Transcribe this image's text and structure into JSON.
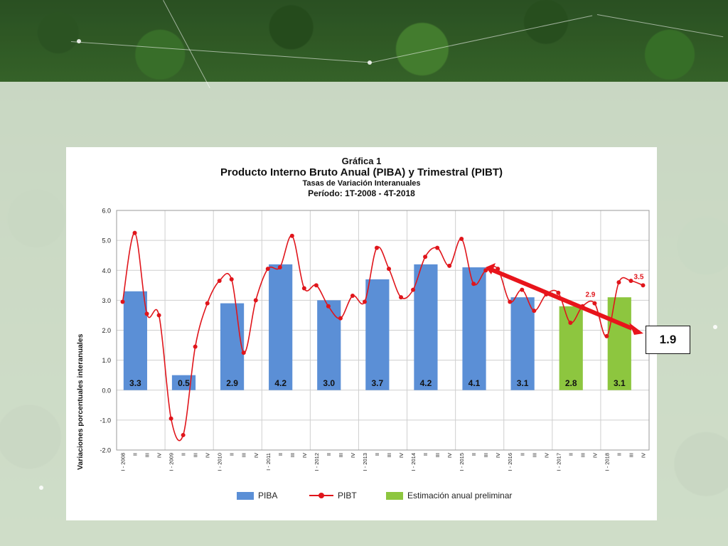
{
  "chart_data": {
    "type": "bar",
    "title": "Gráfica 1",
    "subtitle": "Producto Interno Bruto Anual (PIBA) y Trimestral (PIBT)",
    "subtitle2": "Tasas de Variación Interanuales",
    "period": "Período: 1T-2008 - 4T-2018",
    "ylabel": "Variaciones porcentuales interanuales",
    "ylim": [
      -2.0,
      6.0
    ],
    "yticks": [
      "6.0",
      "5.0",
      "4.0",
      "3.0",
      "2.0",
      "1.0",
      "0.0",
      "-1.0",
      "-2.0"
    ],
    "grid": true,
    "legend_position": "bottom",
    "x_ticks": [
      "I - 2008",
      "II",
      "III",
      "IV",
      "I - 2009",
      "II",
      "III",
      "IV",
      "I - 2010",
      "II",
      "III",
      "IV",
      "I - 2011",
      "II",
      "III",
      "IV",
      "I - 2012",
      "II",
      "III",
      "IV",
      "I - 2013",
      "II",
      "III",
      "IV",
      "I - 2014",
      "II",
      "III",
      "IV",
      "I - 2015",
      "II",
      "III",
      "IV",
      "I - 2016",
      "II",
      "III",
      "IV",
      "I - 2017",
      "II",
      "III",
      "IV",
      "I - 2018",
      "II",
      "III",
      "IV"
    ],
    "series": [
      {
        "name": "PIBA",
        "kind": "bar",
        "color": "#5b8fd6",
        "years": [
          2008,
          2009,
          2010,
          2011,
          2012,
          2013,
          2014,
          2015,
          2016,
          2017,
          2018
        ],
        "values": [
          3.3,
          0.5,
          2.9,
          4.2,
          3.0,
          3.7,
          4.2,
          4.1,
          3.1,
          2.8,
          3.1
        ],
        "labels": [
          "3.3",
          "0.5",
          "2.9",
          "4.2",
          "3.0",
          "3.7",
          "4.2",
          "4.1",
          "3.1",
          "2.8",
          "3.1"
        ]
      },
      {
        "name": "PIBT",
        "kind": "line",
        "color": "#e0151b",
        "values": [
          2.95,
          5.25,
          2.55,
          2.5,
          -0.95,
          -1.5,
          1.45,
          2.9,
          3.65,
          3.7,
          1.25,
          3.0,
          4.05,
          4.1,
          5.15,
          3.4,
          3.5,
          2.8,
          2.4,
          3.15,
          2.95,
          4.75,
          4.05,
          3.1,
          3.35,
          4.45,
          4.75,
          4.15,
          5.05,
          3.55,
          4.0,
          4.05,
          2.95,
          3.35,
          2.65,
          3.2,
          3.25,
          2.25,
          2.8,
          2.9,
          1.8,
          3.6,
          3.65,
          3.5
        ],
        "point_labels": [
          {
            "index": 39,
            "text": "2.9"
          },
          {
            "index": 43,
            "text": "3.5"
          }
        ]
      },
      {
        "name": "Estimación anual preliminar",
        "kind": "bar-highlight",
        "color": "#8dc63f",
        "applies_to_years": [
          2017,
          2018
        ]
      }
    ],
    "annotation": {
      "text": "1.9",
      "arrow_color": "#e8141b"
    }
  },
  "legend": {
    "piba": "PIBA",
    "pibt": "PIBT",
    "estimacion": "Estimación anual preliminar"
  }
}
